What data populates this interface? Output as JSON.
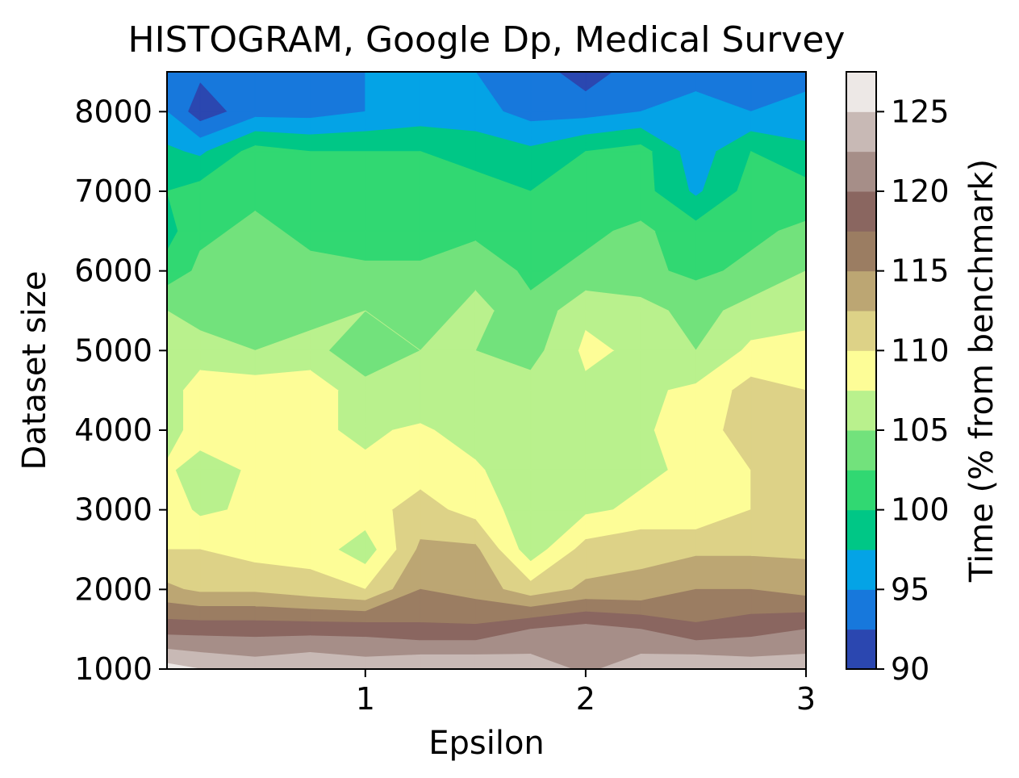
{
  "chart_data": {
    "type": "heatmap",
    "subtype": "filled-contour",
    "title": "HISTOGRAM, Google Dp, Medical Survey",
    "xlabel": "Epsilon",
    "ylabel": "Dataset size",
    "colorbar_label": "Time (% from benchmark)",
    "xlim": [
      0.1,
      3.0
    ],
    "ylim": [
      1000,
      8500
    ],
    "x_ticks": [
      1,
      2,
      3
    ],
    "y_ticks": [
      1000,
      2000,
      3000,
      4000,
      5000,
      6000,
      7000,
      8000
    ],
    "colorbar_ticks": [
      90,
      95,
      100,
      105,
      110,
      115,
      120,
      125
    ],
    "levels": [
      90,
      92.5,
      95,
      97.5,
      100,
      102.5,
      105,
      107.5,
      110,
      112.5,
      115,
      117.5,
      120,
      122.5,
      125,
      127.5
    ],
    "colors": [
      "#2b47b0",
      "#1778dc",
      "#04a3e6",
      "#00c786",
      "#31d872",
      "#72e27c",
      "#b9f18d",
      "#fdfd97",
      "#ddd287",
      "#bca673",
      "#9b7d62",
      "#8a6660",
      "#a68e88",
      "#c8b9b5",
      "#ede8e6"
    ],
    "x": [
      0.1,
      0.25,
      0.5,
      0.75,
      1.0,
      1.25,
      1.5,
      1.75,
      2.0,
      2.25,
      2.5,
      2.75,
      3.0
    ],
    "y": [
      1000,
      1500,
      2000,
      2500,
      3000,
      3500,
      4000,
      4500,
      5000,
      5500,
      6000,
      6500,
      7000,
      7500,
      8000,
      8500
    ],
    "z": [
      [
        126,
        125,
        124,
        125,
        124,
        125,
        125,
        124,
        122,
        124,
        125,
        124,
        124
      ],
      [
        119,
        119,
        119,
        119,
        119,
        118,
        118,
        120,
        121,
        120,
        118,
        119,
        120
      ],
      [
        113,
        112,
        112,
        111,
        110,
        115,
        114,
        111,
        113,
        113,
        115,
        115,
        114
      ],
      [
        110,
        110,
        109,
        109,
        106,
        113,
        113,
        106,
        111,
        112,
        112,
        112,
        112
      ],
      [
        109,
        107,
        108,
        109,
        109,
        111,
        109,
        106,
        107,
        108,
        108,
        110,
        111
      ],
      [
        108,
        106,
        108,
        108,
        108,
        109,
        108,
        105,
        106,
        107,
        108,
        110,
        111
      ],
      [
        106,
        109,
        108,
        108,
        107,
        108,
        106,
        105,
        106,
        107,
        109,
        111,
        110
      ],
      [
        106,
        109,
        109,
        109,
        106,
        105,
        105,
        106,
        107,
        107,
        108,
        111,
        110
      ],
      [
        106,
        106,
        105,
        106,
        103,
        105,
        105,
        104,
        108,
        107,
        105,
        108,
        108
      ],
      [
        105,
        104,
        104,
        104,
        105,
        103,
        106,
        103,
        107,
        106,
        104,
        106,
        107
      ],
      [
        101,
        103,
        104,
        103,
        103,
        103,
        104,
        102,
        103,
        103,
        102,
        103,
        105
      ],
      [
        99,
        102,
        103,
        102,
        101,
        101,
        102,
        101,
        102,
        103,
        101,
        102,
        103
      ],
      [
        100,
        101,
        102,
        101,
        101,
        100,
        101,
        100,
        101,
        101,
        97,
        101,
        101
      ],
      [
        98,
        97,
        101,
        100,
        100,
        100,
        99,
        98,
        100,
        101,
        96,
        100,
        98
      ],
      [
        95,
        91,
        94,
        94,
        95,
        96,
        96,
        94,
        94,
        95,
        96,
        95,
        96
      ],
      [
        93,
        93,
        94,
        93,
        95,
        97,
        95,
        94,
        91,
        94,
        94,
        94,
        94
      ]
    ]
  }
}
